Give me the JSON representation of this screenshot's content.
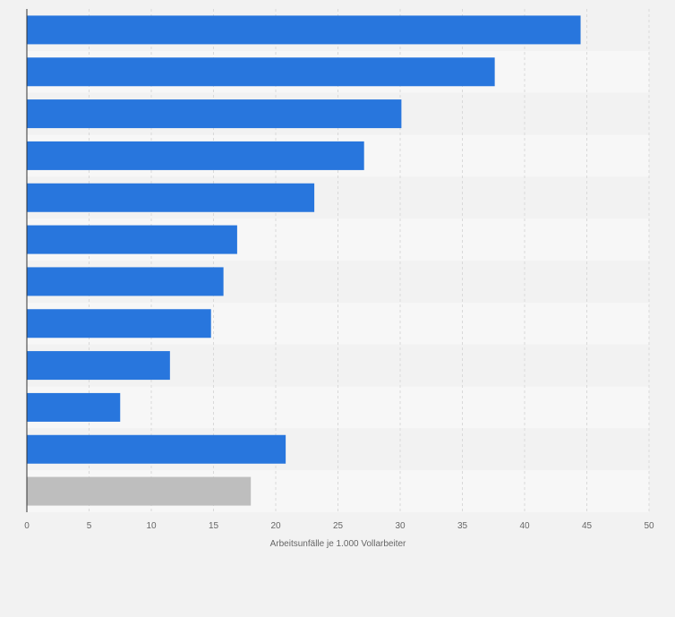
{
  "chart_data": {
    "type": "bar",
    "orientation": "horizontal",
    "title": "",
    "xlabel": "Arbeitsunfälle je 1.000 Vollarbeiter",
    "ylabel": "",
    "xlim": [
      0,
      50
    ],
    "xticks": [
      0,
      5,
      10,
      15,
      20,
      25,
      30,
      35,
      40,
      45,
      50
    ],
    "categories": [
      "",
      "",
      "",
      "",
      "",
      "",
      "",
      "",
      "",
      "",
      "",
      ""
    ],
    "values": [
      44.5,
      37.6,
      30.1,
      27.1,
      23.1,
      16.9,
      15.8,
      14.8,
      11.5,
      7.5,
      20.8,
      18.0
    ],
    "bar_colors": [
      "#2876dd",
      "#2876dd",
      "#2876dd",
      "#2876dd",
      "#2876dd",
      "#2876dd",
      "#2876dd",
      "#2876dd",
      "#2876dd",
      "#2876dd",
      "#2876dd",
      "#bebebe"
    ],
    "grid": true,
    "legend": "none"
  },
  "colors": {
    "bar": "#2876dd",
    "bar_highlight": "#bebebe",
    "band_even": "#f2f2f2",
    "band_odd": "#f7f7f7",
    "grid": "#d9d9d9",
    "axis": "#333333",
    "text": "#666666"
  }
}
